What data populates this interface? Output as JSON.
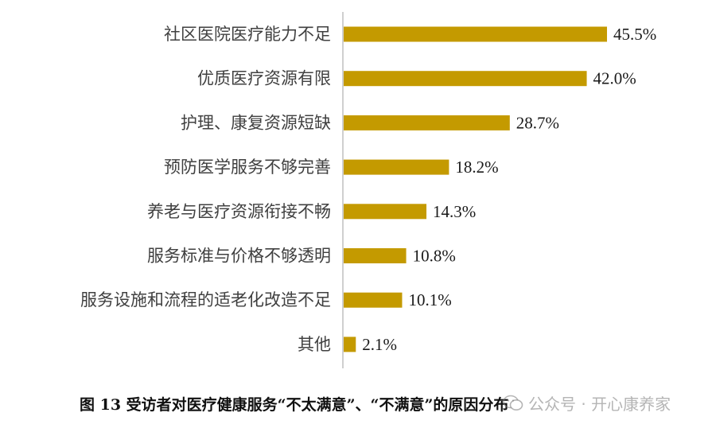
{
  "chart_data": {
    "type": "bar",
    "orientation": "horizontal",
    "categories": [
      "社区医院医疗能力不足",
      "优质医疗资源有限",
      "护理、康复资源短缺",
      "预防医学服务不够完善",
      "养老与医疗资源衔接不畅",
      "服务标准与价格不够透明",
      "服务设施和流程的适老化改造不足",
      "其他"
    ],
    "values": [
      45.5,
      42.0,
      28.7,
      18.2,
      14.3,
      10.8,
      10.1,
      2.1
    ],
    "value_labels": [
      "45.5%",
      "42.0%",
      "28.7%",
      "18.2%",
      "14.3%",
      "10.8%",
      "10.1%",
      "2.1%"
    ],
    "bar_color": "#C49A00",
    "axis_color": "#BFBFBF",
    "xlim": [
      0,
      50
    ],
    "grid": false,
    "legend": "none"
  },
  "caption": "图 13  受访者对医疗健康服务“不太满意”、“不满意”的原因分布",
  "watermark": {
    "text": "公众号 · 开心康养家",
    "icon": "wechat-icon"
  }
}
